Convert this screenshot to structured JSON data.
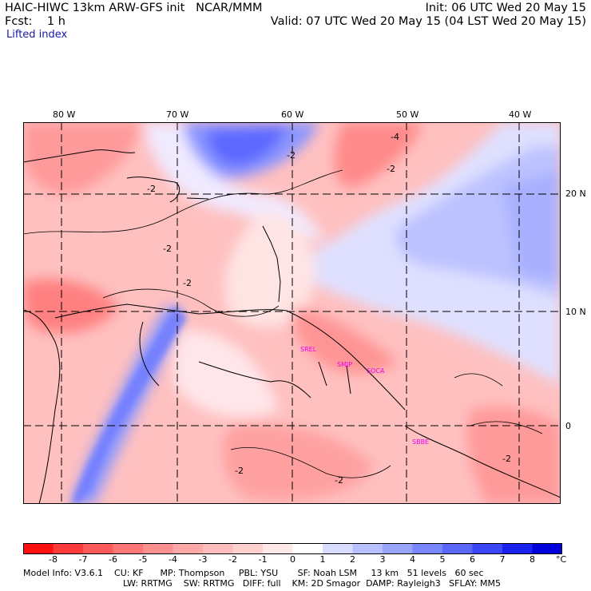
{
  "header": {
    "line1_left": "HAIC-HIWC 13km ARW-GFS init   NCAR/MMM",
    "line1_right": "Init: 06 UTC Wed 20 May 15",
    "line2_left": "Fcst:    1 h",
    "line2_right": "Valid: 07 UTC Wed 20 May 15 (04 LST Wed 20 May 15)",
    "field": "Lifted index"
  },
  "grid": {
    "lon_labels": [
      "80 W",
      "70 W",
      "60 W",
      "50 W",
      "40 W"
    ],
    "lat_labels": [
      "20 N",
      "10 N",
      "0"
    ]
  },
  "contour_labels": [
    "-2",
    "-4"
  ],
  "stations": [
    "SREL",
    "SMJP",
    "SOCA",
    "SBBE"
  ],
  "colorbar": {
    "ticks": [
      "-8",
      "-7",
      "-6",
      "-5",
      "-4",
      "-3",
      "-2",
      "-1",
      "0",
      "1",
      "2",
      "3",
      "4",
      "5",
      "6",
      "7",
      "8"
    ],
    "unit": "°C",
    "colors": [
      "#ff1010",
      "#ff3a3a",
      "#ff5a5a",
      "#ff7676",
      "#ff9090",
      "#ffa8a8",
      "#ffbcbc",
      "#ffd0d0",
      "#ffe8e8",
      "#ffffff",
      "#d8dcff",
      "#b8c0ff",
      "#98a4ff",
      "#7886ff",
      "#5a68ff",
      "#3a46f8",
      "#1a22ee",
      "#0000dd"
    ]
  },
  "model_info": {
    "line1": "Model Info: V3.6.1    CU: KF      MP: Thompson     PBL: YSU       SF: Noah LSM     13 km   51 levels   60 sec",
    "line2": "LW: RRTMG    SW: RRTMG   DIFF: full    KM: 2D Smagor  DAMP: Rayleigh3   SFLAY: MM5"
  }
}
